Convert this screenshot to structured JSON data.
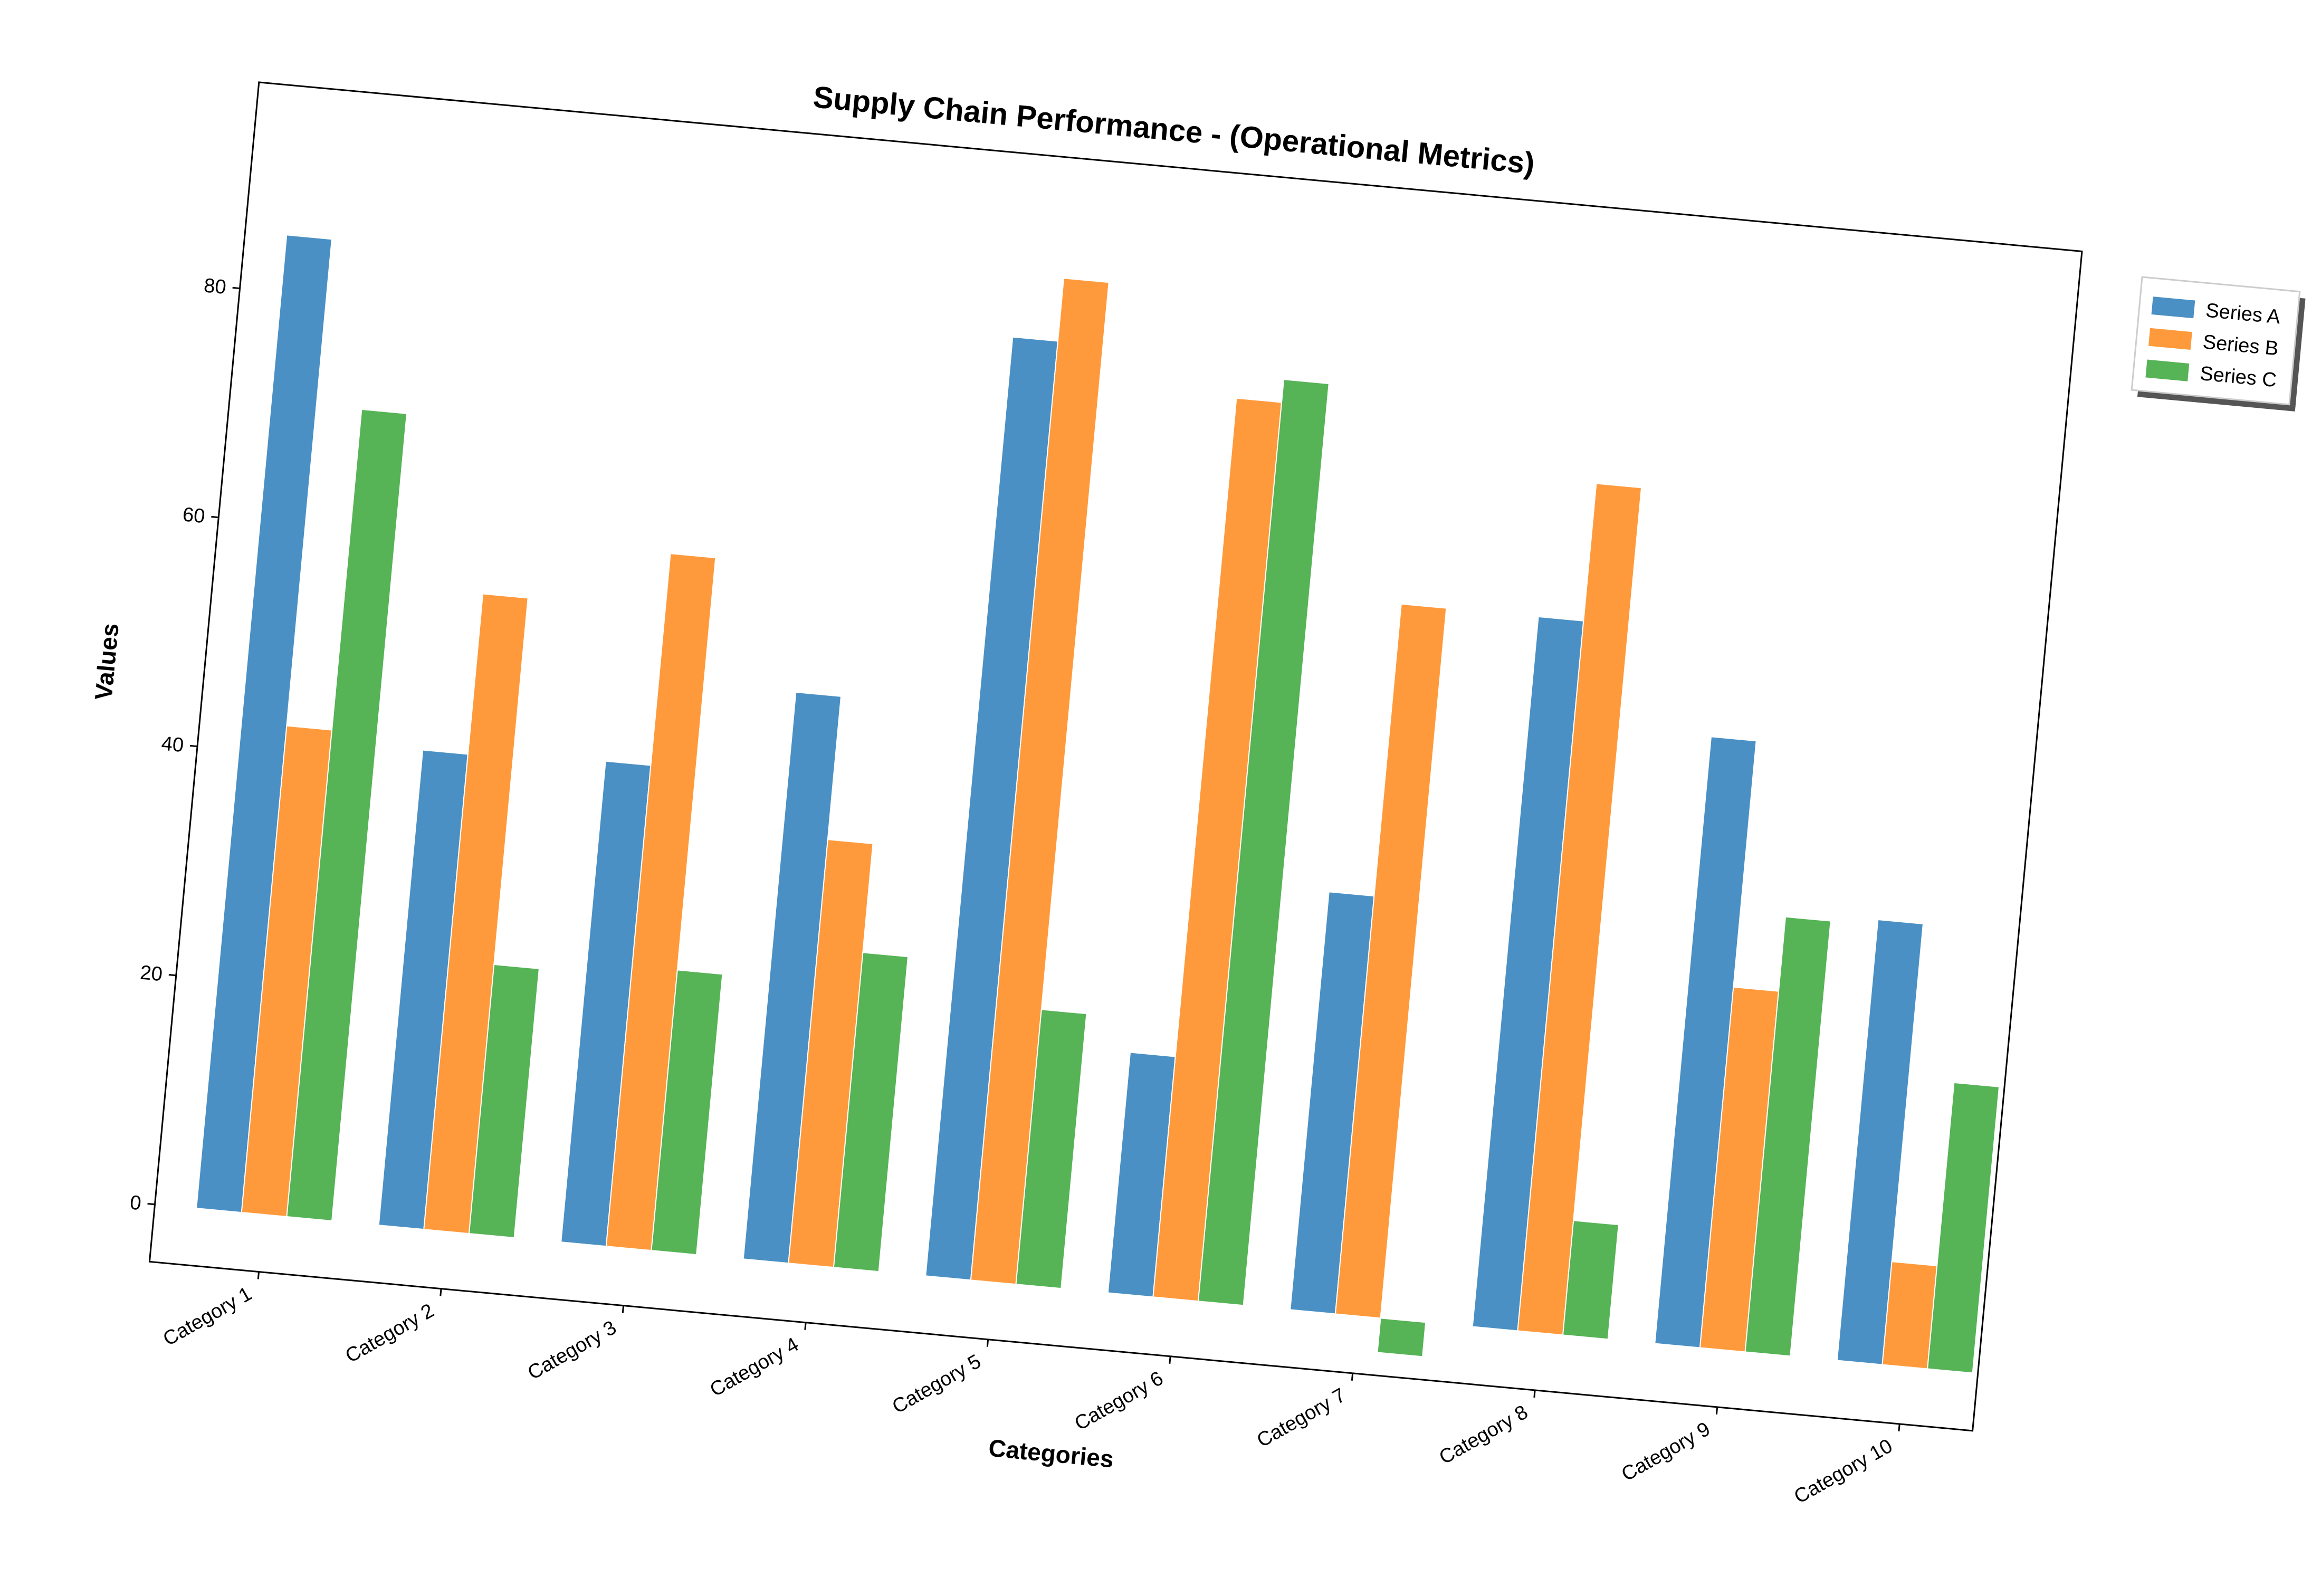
{
  "chart_data": {
    "type": "bar",
    "title": "Supply Chain Performance - (Operational Metrics)",
    "xlabel": "Categories",
    "ylabel": "Values",
    "categories": [
      "Category 1",
      "Category 2",
      "Category 3",
      "Category 4",
      "Category 5",
      "Category 6",
      "Category 7",
      "Category 8",
      "Category 9",
      "Category 10"
    ],
    "yticks": [
      0,
      20,
      40,
      60,
      80
    ],
    "ylim": [
      -5,
      98
    ],
    "grid": false,
    "legend_position": "outside-right",
    "series": [
      {
        "name": "Series A",
        "color": "#4a90c4",
        "values": [
          85.0,
          41.5,
          42.0,
          49.5,
          82.0,
          21.0,
          36.5,
          62.0,
          53.0,
          38.5
        ]
      },
      {
        "name": "Series B",
        "color": "#ff9a3c",
        "values": [
          42.5,
          55.5,
          60.5,
          37.0,
          87.5,
          78.5,
          62.0,
          74.0,
          31.5,
          9.0
        ]
      },
      {
        "name": "Series C",
        "color": "#56b356",
        "values": [
          70.5,
          23.5,
          24.5,
          27.5,
          24.0,
          80.5,
          -3.0,
          10.0,
          38.0,
          25.0
        ]
      }
    ]
  }
}
